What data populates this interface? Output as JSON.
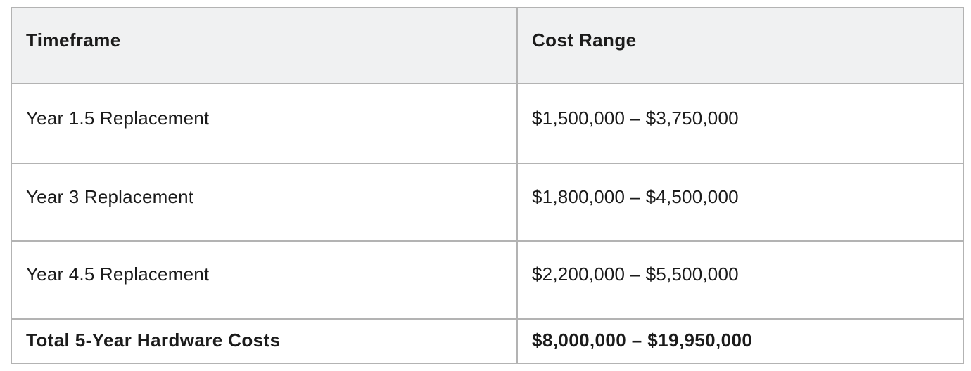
{
  "table": {
    "columns": [
      {
        "label": "Timeframe"
      },
      {
        "label": "Cost Range"
      }
    ],
    "rows": [
      {
        "timeframe": "Year 1.5 Replacement",
        "cost_range": "$1,500,000 – $3,750,000"
      },
      {
        "timeframe": "Year 3 Replacement",
        "cost_range": "$1,800,000 – $4,500,000"
      },
      {
        "timeframe": "Year 4.5 Replacement",
        "cost_range": "$2,200,000 – $5,500,000"
      }
    ],
    "total_row": {
      "timeframe": "Total 5-Year Hardware Costs",
      "cost_range": "$8,000,000 – $19,950,000"
    },
    "colors": {
      "header_bg": "#f0f1f2",
      "border": "#b3b3b3",
      "text": "#1b1b1b",
      "body_bg": "#ffffff"
    }
  }
}
